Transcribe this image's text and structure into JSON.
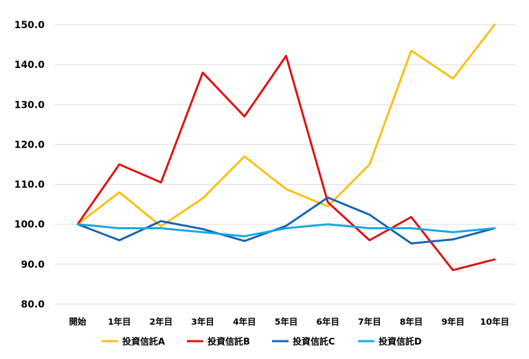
{
  "chart_data": {
    "type": "line",
    "categories": [
      "開始",
      "1年目",
      "2年目",
      "3年目",
      "4年目",
      "5年目",
      "6年目",
      "7年目",
      "8年目",
      "9年目",
      "10年目"
    ],
    "ylim": [
      80,
      150
    ],
    "yticks": [
      "80.0",
      "90.0",
      "100.0",
      "110.0",
      "120.0",
      "130.0",
      "140.0",
      "150.0"
    ],
    "grid": true,
    "legend_position": "bottom",
    "series": [
      {
        "name": "投資信託A",
        "color": "#f5c211",
        "values": [
          100,
          108,
          99.5,
          106.5,
          117,
          108.8,
          104.5,
          115,
          143.5,
          136.5,
          150
        ]
      },
      {
        "name": "投資信託B",
        "color": "#e01010",
        "values": [
          100,
          115,
          110.5,
          138,
          127,
          142.2,
          105.5,
          96,
          101.8,
          88.5,
          91.2
        ]
      },
      {
        "name": "投資信託C",
        "color": "#1565b0",
        "values": [
          100,
          96,
          100.8,
          98.8,
          95.8,
          99.6,
          106.7,
          102.4,
          95.2,
          96.2,
          99
        ]
      },
      {
        "name": "投資信託D",
        "color": "#19a7e0",
        "values": [
          100,
          99,
          99,
          98,
          97,
          99,
          100,
          99,
          99,
          98,
          99
        ]
      }
    ]
  }
}
